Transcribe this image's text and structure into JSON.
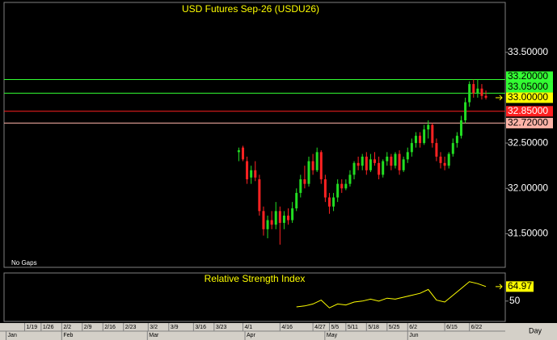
{
  "chart_data": {
    "type": "candlestick",
    "title": "USD Futures Sep-26 (USDU26)",
    "note": "No Gaps",
    "x_axis_label": "Day",
    "up_color": "#22dd22",
    "down_color": "#ff2222",
    "x": [
      52,
      53,
      54,
      55,
      56,
      57,
      58,
      59,
      60,
      61,
      62,
      63,
      64,
      65,
      66,
      67,
      68,
      69,
      70,
      71,
      72,
      73,
      74,
      75,
      76,
      77,
      78,
      79,
      80,
      81,
      82,
      83,
      84,
      85,
      86,
      87,
      88,
      89,
      90,
      91,
      92,
      93,
      94,
      95,
      96,
      97,
      98,
      99,
      100,
      101,
      102,
      103,
      104,
      105,
      106,
      107,
      108,
      109,
      110,
      111,
      112
    ],
    "open": [
      32.4,
      32.45,
      32.3,
      32.12,
      32.2,
      32.1,
      31.75,
      31.55,
      31.65,
      31.6,
      31.75,
      31.62,
      31.7,
      31.65,
      31.78,
      31.95,
      32.1,
      32.05,
      32.3,
      32.2,
      32.4,
      32.1,
      31.9,
      31.8,
      31.9,
      32.05,
      32.0,
      32.05,
      32.15,
      32.28,
      32.25,
      32.35,
      32.2,
      32.32,
      32.28,
      32.15,
      32.3,
      32.35,
      32.25,
      32.38,
      32.2,
      32.32,
      32.4,
      32.5,
      32.58,
      32.5,
      32.65,
      32.7,
      32.5,
      32.35,
      32.28,
      32.25,
      32.38,
      32.5,
      32.58,
      32.75,
      32.95,
      33.15,
      33.05,
      33.1,
      33.02
    ],
    "high": [
      32.45,
      32.47,
      32.35,
      32.25,
      32.3,
      32.15,
      31.8,
      31.7,
      31.75,
      31.85,
      31.8,
      31.75,
      31.78,
      31.85,
      32.0,
      32.15,
      32.25,
      32.35,
      32.38,
      32.45,
      32.42,
      32.15,
      31.95,
      31.95,
      32.1,
      32.1,
      32.1,
      32.2,
      32.3,
      32.35,
      32.38,
      32.4,
      32.38,
      32.4,
      32.35,
      32.32,
      32.4,
      32.38,
      32.4,
      32.42,
      32.35,
      32.45,
      32.55,
      32.62,
      32.62,
      32.7,
      32.75,
      32.72,
      32.55,
      32.4,
      32.35,
      32.4,
      32.55,
      32.62,
      32.8,
      33.0,
      33.18,
      33.2,
      33.2,
      33.15,
      33.08
    ],
    "low": [
      32.3,
      32.3,
      32.05,
      32.05,
      32.08,
      31.7,
      31.48,
      31.45,
      31.55,
      31.55,
      31.38,
      31.55,
      31.6,
      31.62,
      31.75,
      31.9,
      32.0,
      32.02,
      32.15,
      32.18,
      32.05,
      31.85,
      31.72,
      31.75,
      31.85,
      31.95,
      31.98,
      32.02,
      32.1,
      32.2,
      32.2,
      32.15,
      32.18,
      32.25,
      32.1,
      32.12,
      32.25,
      32.2,
      32.22,
      32.15,
      32.18,
      32.28,
      32.35,
      32.45,
      32.45,
      32.48,
      32.55,
      32.45,
      32.3,
      32.22,
      32.2,
      32.22,
      32.35,
      32.45,
      32.55,
      32.72,
      32.9,
      33.0,
      33.0,
      32.98,
      32.98
    ],
    "close": [
      32.42,
      32.32,
      32.1,
      32.2,
      32.12,
      31.75,
      31.55,
      31.65,
      31.6,
      31.75,
      31.62,
      31.7,
      31.65,
      31.78,
      31.95,
      32.1,
      32.05,
      32.3,
      32.2,
      32.4,
      32.1,
      31.9,
      31.8,
      31.9,
      32.05,
      32.0,
      32.05,
      32.15,
      32.28,
      32.25,
      32.35,
      32.2,
      32.32,
      32.28,
      32.15,
      32.3,
      32.35,
      32.25,
      32.38,
      32.2,
      32.32,
      32.4,
      32.5,
      32.58,
      32.5,
      32.65,
      32.7,
      32.5,
      32.35,
      32.28,
      32.25,
      32.38,
      32.5,
      32.58,
      32.75,
      32.95,
      33.15,
      33.05,
      33.1,
      33.02,
      33.0
    ],
    "xlim": [
      -5,
      116.7
    ],
    "ylim": [
      31.13,
      34.05
    ],
    "yticks": [
      {
        "value": 31.5,
        "label": "31.50000"
      },
      {
        "value": 32,
        "label": "32.00000"
      },
      {
        "value": 32.5,
        "label": "32.50000"
      },
      {
        "value": 33.5,
        "label": "33.50000"
      }
    ],
    "xticks": [
      {
        "value": 0,
        "label": "1/19"
      },
      {
        "value": 4,
        "label": "1/26"
      },
      {
        "value": 9,
        "label": "2/2"
      },
      {
        "value": 14,
        "label": "2/9"
      },
      {
        "value": 19,
        "label": "2/16"
      },
      {
        "value": 24,
        "label": "2/23"
      },
      {
        "value": 30,
        "label": "3/2"
      },
      {
        "value": 35,
        "label": "3/9"
      },
      {
        "value": 41,
        "label": "3/16"
      },
      {
        "value": 46,
        "label": "3/23"
      },
      {
        "value": 53,
        "label": "4/1"
      },
      {
        "value": 62,
        "label": "4/16"
      },
      {
        "value": 70,
        "label": "4/27"
      },
      {
        "value": 74,
        "label": "5/5"
      },
      {
        "value": 78,
        "label": "5/11"
      },
      {
        "value": 83,
        "label": "5/18"
      },
      {
        "value": 88,
        "label": "5/25"
      },
      {
        "value": 93,
        "label": "6/2"
      },
      {
        "value": 102,
        "label": "6/15"
      },
      {
        "value": 108,
        "label": "6/22"
      }
    ],
    "month_ticks": [
      {
        "value": -4.5,
        "label": "Jan"
      },
      {
        "value": 9,
        "label": "Feb"
      },
      {
        "value": 29.8,
        "label": "Mar"
      },
      {
        "value": 53.5,
        "label": "Apr"
      },
      {
        "value": 72.9,
        "label": "May"
      },
      {
        "value": 93,
        "label": "Jun"
      }
    ],
    "levels": [
      {
        "value": 33.2,
        "label": "33.20000",
        "color": "#33ff33"
      },
      {
        "value": 33.05,
        "label": "33.05000",
        "color": "#33ff33"
      },
      {
        "value": 32.85,
        "label": "32.85000",
        "color": "#ff2020"
      },
      {
        "value": 32.72,
        "label": "32.72000",
        "color": "#ffb4a8"
      }
    ],
    "last_price": {
      "value": 33,
      "label": "33.00000",
      "color": "#ffff00"
    },
    "rsi": {
      "title": "Relative Strength Index",
      "color": "#ffff00",
      "x": [
        66,
        68,
        70,
        72,
        74,
        76,
        78,
        80,
        82,
        84,
        86,
        88,
        90,
        92,
        94,
        96,
        98,
        100,
        102,
        104,
        106,
        108,
        110,
        112
      ],
      "values": [
        44,
        45,
        47,
        51,
        43,
        47,
        46,
        49,
        50,
        52,
        50,
        53,
        52,
        54,
        56,
        58,
        62,
        51,
        49,
        56,
        63,
        70,
        68,
        64.97
      ],
      "ylim": [
        29,
        79
      ],
      "yticks": [
        50
      ]
    }
  }
}
